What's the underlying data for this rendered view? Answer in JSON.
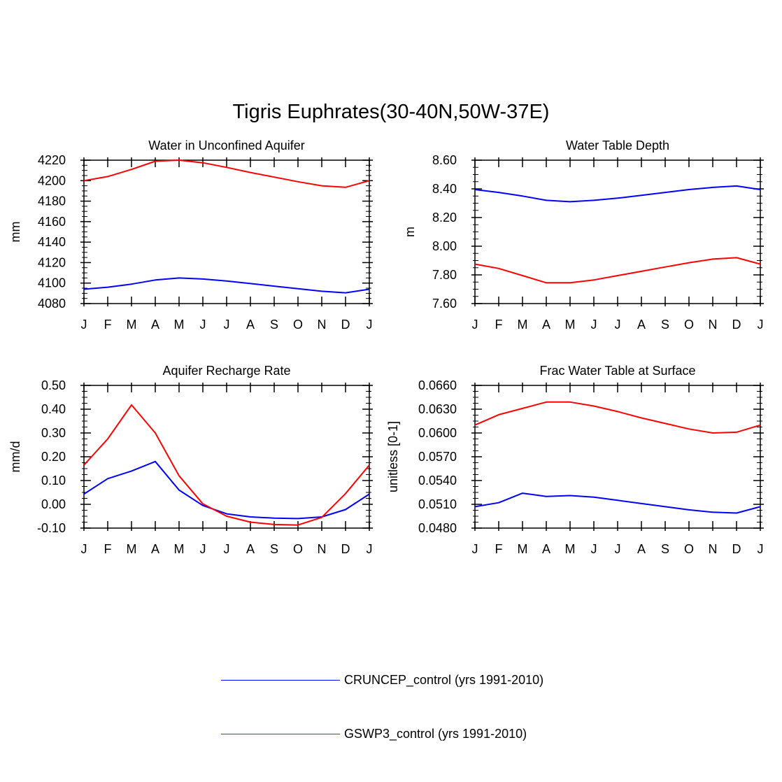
{
  "figure": {
    "title": "Tigris Euphrates(30-40N,50W-37E)"
  },
  "colors": {
    "series_1": "#0000ff",
    "series_2": "#ff0000",
    "axis": "#000000"
  },
  "legend": [
    {
      "label": "CRUNCEP_control (yrs 1991-2010)",
      "color": "#0000ff"
    },
    {
      "label": "GSWP3_control (yrs 1991-2010)",
      "color": "#ff0000"
    }
  ],
  "chart_data": [
    {
      "type": "line",
      "title": "Water in Unconfined Aquifer",
      "ylabel": "mm",
      "xlabel": "",
      "categories": [
        "J",
        "F",
        "M",
        "A",
        "M",
        "J",
        "J",
        "A",
        "S",
        "O",
        "N",
        "D",
        "J"
      ],
      "ylim": [
        4080,
        4220
      ],
      "yticks": [
        4080,
        4100,
        4120,
        4140,
        4160,
        4180,
        4200,
        4220
      ],
      "yticklabels": [
        "4080",
        "4100",
        "4120",
        "4140",
        "4160",
        "4180",
        "4200",
        "4220"
      ],
      "series": [
        {
          "name": "CRUNCEP_control (yrs 1991-2010)",
          "values": [
            4094,
            4096,
            4099,
            4103,
            4105,
            4104,
            4102,
            4099.5,
            4097,
            4094.5,
            4092,
            4090.5,
            4094
          ]
        },
        {
          "name": "GSWP3_control (yrs 1991-2010)",
          "values": [
            4200,
            4204,
            4211,
            4219,
            4220,
            4217.5,
            4213,
            4208,
            4203.5,
            4199,
            4195,
            4193.5,
            4200
          ]
        }
      ]
    },
    {
      "type": "line",
      "title": "Water Table Depth",
      "ylabel": "m",
      "xlabel": "",
      "categories": [
        "J",
        "F",
        "M",
        "A",
        "M",
        "J",
        "J",
        "A",
        "S",
        "O",
        "N",
        "D",
        "J"
      ],
      "ylim": [
        7.6,
        8.6
      ],
      "yticks": [
        7.6,
        7.8,
        8.0,
        8.2,
        8.4,
        8.6
      ],
      "yticklabels": [
        "7.60",
        "7.80",
        "8.00",
        "8.20",
        "8.40",
        "8.60"
      ],
      "series": [
        {
          "name": "CRUNCEP_control (yrs 1991-2010)",
          "values": [
            8.395,
            8.375,
            8.35,
            8.32,
            8.31,
            8.32,
            8.335,
            8.355,
            8.375,
            8.395,
            8.41,
            8.42,
            8.395
          ]
        },
        {
          "name": "GSWP3_control (yrs 1991-2010)",
          "values": [
            7.875,
            7.845,
            7.795,
            7.745,
            7.745,
            7.765,
            7.795,
            7.825,
            7.855,
            7.885,
            7.91,
            7.92,
            7.875
          ]
        }
      ]
    },
    {
      "type": "line",
      "title": "Aquifer Recharge Rate",
      "ylabel": "mm/d",
      "xlabel": "",
      "categories": [
        "J",
        "F",
        "M",
        "A",
        "M",
        "J",
        "J",
        "A",
        "S",
        "O",
        "N",
        "D",
        "J"
      ],
      "ylim": [
        -0.1,
        0.5
      ],
      "yticks": [
        -0.1,
        0.0,
        0.1,
        0.2,
        0.3,
        0.4,
        0.5
      ],
      "yticklabels": [
        "-0.10",
        "0.00",
        "0.10",
        "0.20",
        "0.30",
        "0.40",
        "0.50"
      ],
      "series": [
        {
          "name": "CRUNCEP_control (yrs 1991-2010)",
          "values": [
            0.043,
            0.108,
            0.14,
            0.18,
            0.06,
            -0.005,
            -0.04,
            -0.053,
            -0.058,
            -0.06,
            -0.053,
            -0.022,
            0.043
          ]
        },
        {
          "name": "GSWP3_control (yrs 1991-2010)",
          "values": [
            0.165,
            0.275,
            0.418,
            0.3,
            0.12,
            0.002,
            -0.05,
            -0.075,
            -0.085,
            -0.087,
            -0.055,
            0.045,
            0.165
          ]
        }
      ]
    },
    {
      "type": "line",
      "title": "Frac Water Table at Surface",
      "ylabel": "unitless [0-1]",
      "xlabel": "",
      "categories": [
        "J",
        "F",
        "M",
        "A",
        "M",
        "J",
        "J",
        "A",
        "S",
        "O",
        "N",
        "D",
        "J"
      ],
      "ylim": [
        0.048,
        0.066
      ],
      "yticks": [
        0.048,
        0.051,
        0.054,
        0.057,
        0.06,
        0.063,
        0.066
      ],
      "yticklabels": [
        "0.0480",
        "0.0510",
        "0.0540",
        "0.0570",
        "0.0600",
        "0.0630",
        "0.0660"
      ],
      "series": [
        {
          "name": "CRUNCEP_control (yrs 1991-2010)",
          "values": [
            0.0507,
            0.0512,
            0.0524,
            0.052,
            0.0521,
            0.0519,
            0.0515,
            0.0511,
            0.0507,
            0.0503,
            0.05,
            0.0499,
            0.0507
          ]
        },
        {
          "name": "GSWP3_control (yrs 1991-2010)",
          "values": [
            0.061,
            0.0623,
            0.0631,
            0.0639,
            0.0639,
            0.0634,
            0.0627,
            0.0619,
            0.0612,
            0.0605,
            0.06,
            0.0601,
            0.061
          ]
        }
      ]
    }
  ]
}
